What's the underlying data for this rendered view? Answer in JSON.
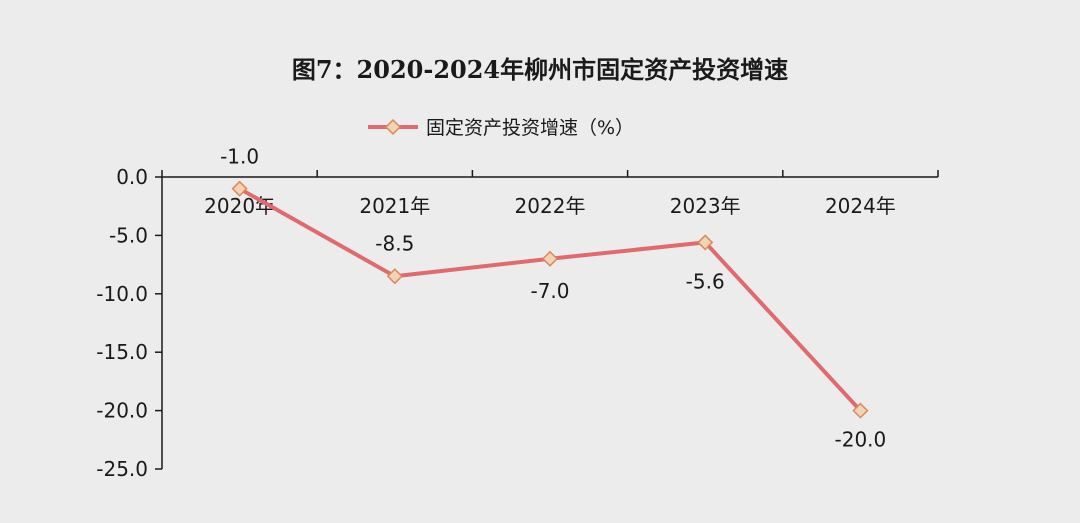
{
  "chart_data": {
    "type": "line",
    "title": "图7：2020-2024年柳州市固定资产投资增速",
    "categories": [
      "2020年",
      "2021年",
      "2022年",
      "2023年",
      "2024年"
    ],
    "series": [
      {
        "name": "固定资产投资增速（%）",
        "values": [
          -1.0,
          -8.5,
          -7.0,
          -5.6,
          -20.0
        ]
      }
    ],
    "data_labels": [
      "-1.0",
      "-8.5",
      "-7.0",
      "-5.6",
      "-20.0"
    ],
    "y_tick_labels": [
      "0.0",
      "-5.0",
      "-10.0",
      "-15.0",
      "-20.0",
      "-25.0"
    ],
    "y_ticks": [
      0,
      -5,
      -10,
      -15,
      -20,
      -25
    ],
    "ylim": [
      -25,
      0
    ],
    "xlabel": "",
    "ylabel": "",
    "grid": false,
    "legend_position": "top",
    "colors": {
      "line": "#e06a6e",
      "marker_fill": "#f4d3b4",
      "marker_stroke": "#d9895a",
      "axis": "#1a1a1a"
    }
  }
}
